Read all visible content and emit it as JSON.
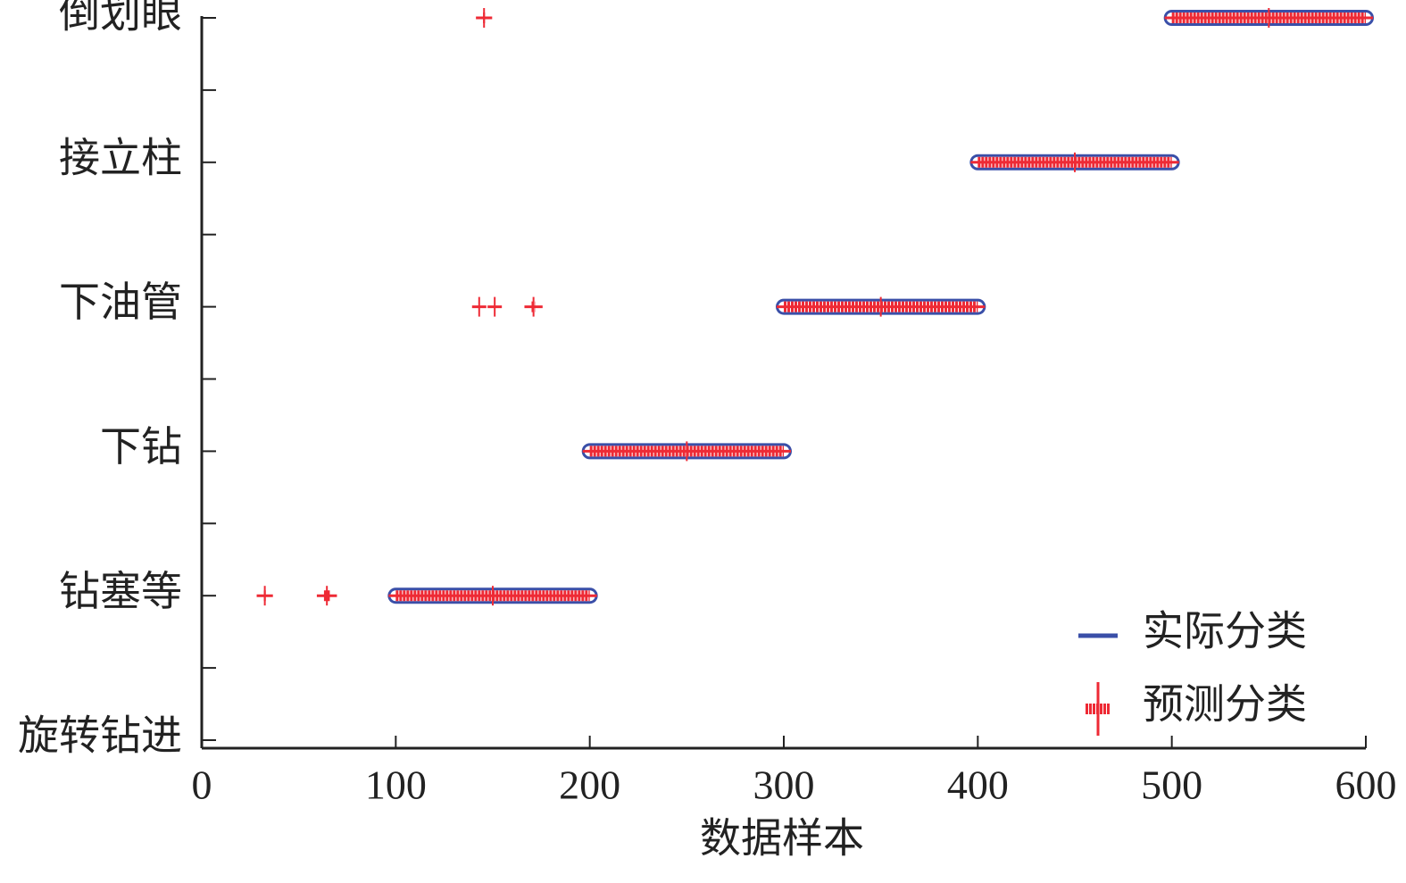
{
  "chart_data": {
    "type": "scatter",
    "xlabel": "数据样本",
    "xlim": [
      0,
      600
    ],
    "xticks": [
      0,
      100,
      200,
      300,
      400,
      500,
      600
    ],
    "ylim": [
      0,
      5
    ],
    "yticks": [
      {
        "value": 0,
        "label": "旋转钻进"
      },
      {
        "value": 1,
        "label": "钻塞等"
      },
      {
        "value": 2,
        "label": "下钻"
      },
      {
        "value": 3,
        "label": "下油管"
      },
      {
        "value": 4,
        "label": "接立柱"
      },
      {
        "value": 5,
        "label": "倒划眼"
      }
    ],
    "legend": "lower right",
    "series": [
      {
        "name": "实际分类",
        "color": "#3a4fa8",
        "marker": "line",
        "x": [
          [
            100,
            200
          ],
          [
            200,
            300
          ],
          [
            300,
            400
          ],
          [
            400,
            500
          ],
          [
            500,
            600
          ]
        ],
        "values": [
          1,
          2,
          3,
          4,
          5
        ]
      },
      {
        "name": "预测分类",
        "color": "#ee2a35",
        "marker": "star",
        "x": [
          [
            32,
            33
          ],
          [
            63,
            66
          ],
          [
            100,
            200
          ],
          [
            145,
            146
          ],
          [
            200,
            300
          ],
          [
            143,
            143
          ],
          [
            151,
            151
          ],
          [
            170,
            172
          ],
          [
            300,
            400
          ],
          [
            400,
            500
          ],
          [
            500,
            600
          ]
        ],
        "values": [
          1,
          1,
          1,
          5,
          2,
          3,
          3,
          3,
          3,
          4,
          5
        ]
      }
    ]
  }
}
